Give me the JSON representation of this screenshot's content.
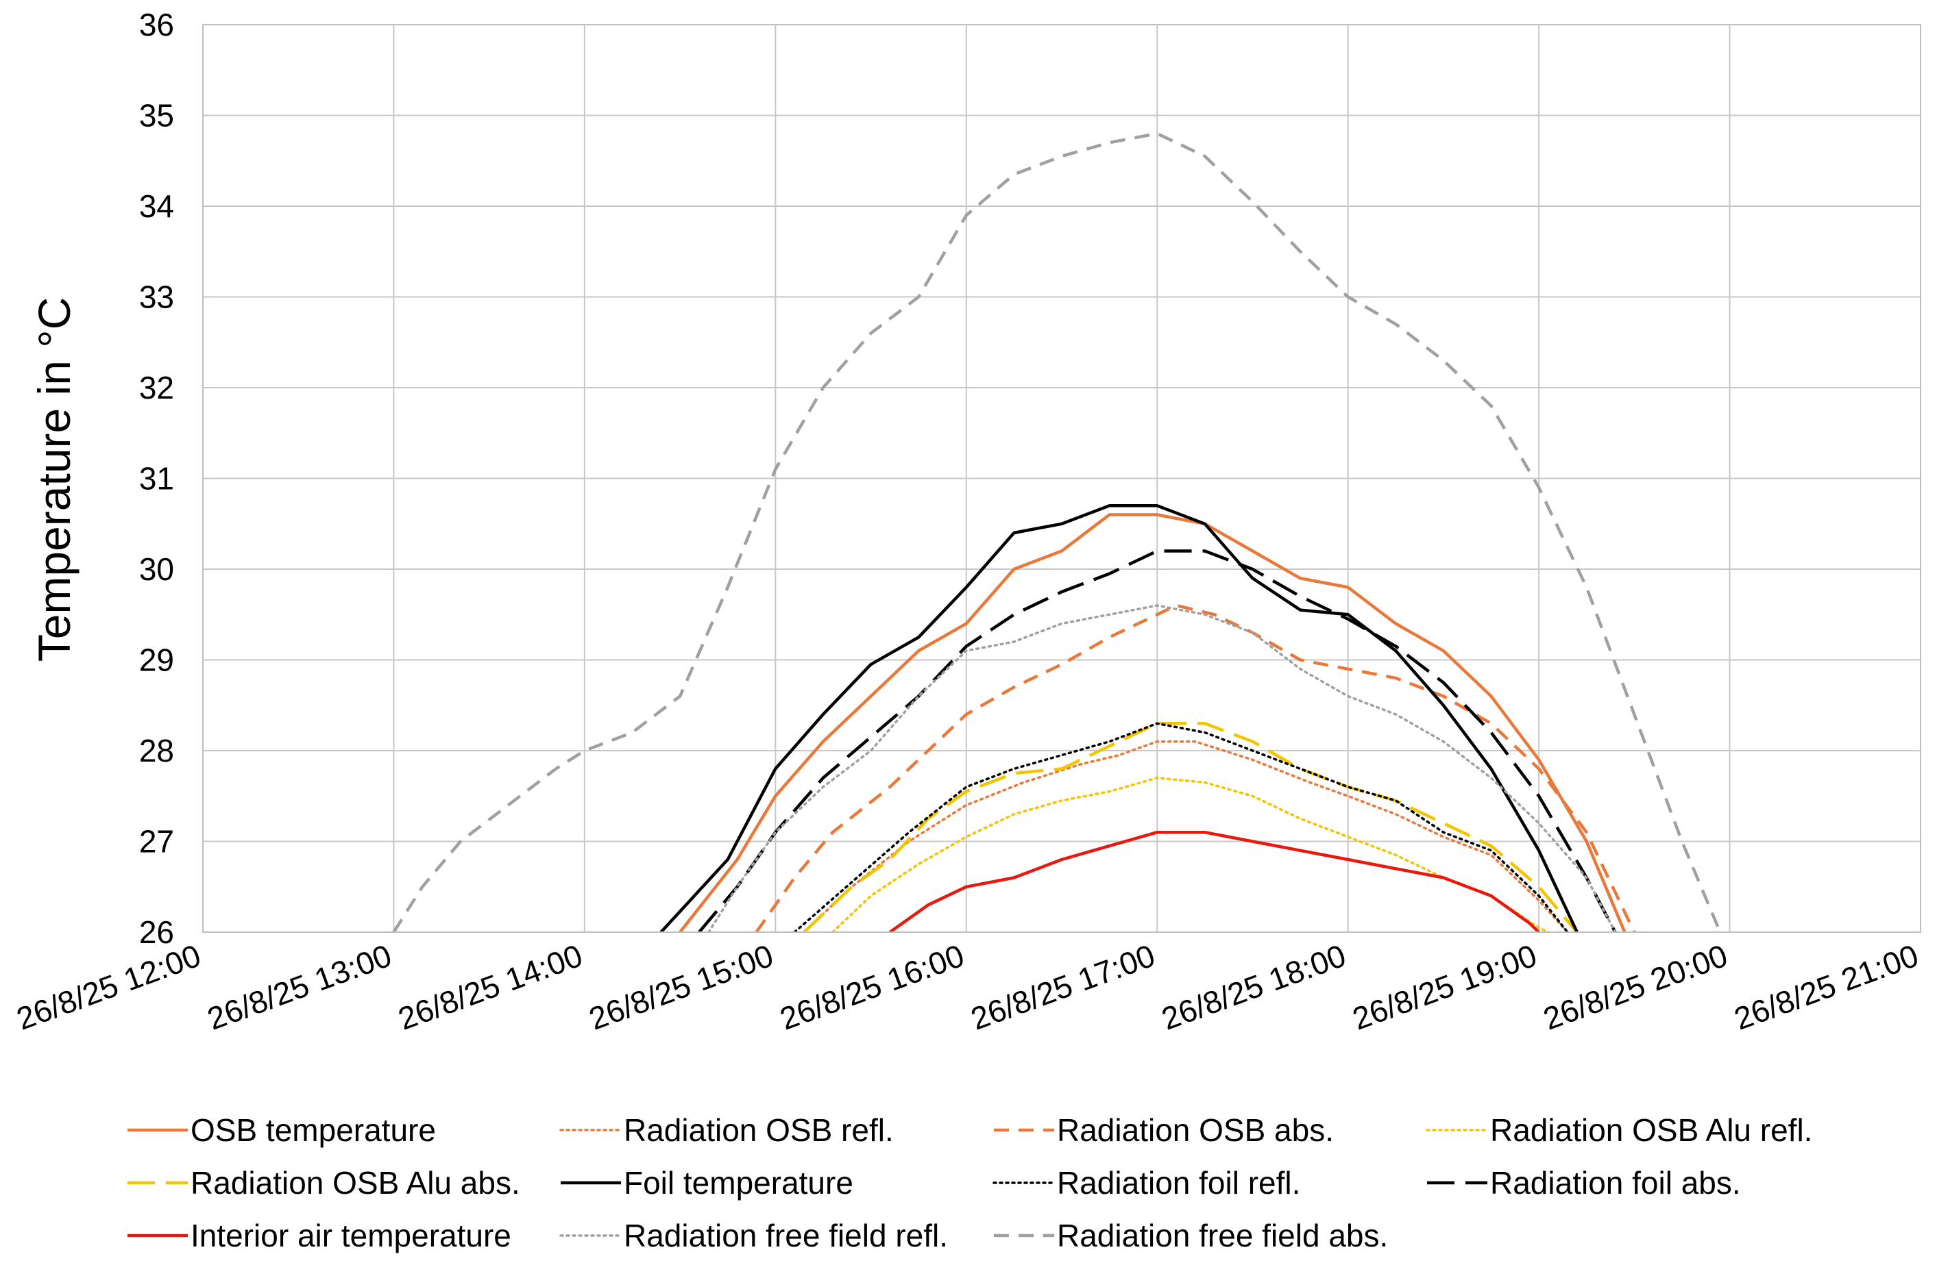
{
  "chart_data": {
    "type": "line",
    "title": "",
    "xlabel": "",
    "ylabel": "Temperature in °C",
    "ylim": [
      26,
      36
    ],
    "xlim_hours": [
      12,
      21
    ],
    "yticks": [
      "26",
      "27",
      "28",
      "29",
      "30",
      "31",
      "32",
      "33",
      "34",
      "35",
      "36"
    ],
    "xticks": [
      "26/8/25 12:00",
      "26/8/25 13:00",
      "26/8/25 14:00",
      "26/8/25 15:00",
      "26/8/25 16:00",
      "26/8/25 17:00",
      "26/8/25 18:00",
      "26/8/25 19:00",
      "26/8/25 20:00",
      "26/8/25 21:00"
    ],
    "grid": true,
    "legend_position": "bottom",
    "series": [
      {
        "name": "OSB temperature",
        "color": "#E8793A",
        "dash": "solid",
        "points": [
          [
            14.5,
            26.0
          ],
          [
            14.8,
            26.8
          ],
          [
            15.0,
            27.5
          ],
          [
            15.25,
            28.1
          ],
          [
            15.5,
            28.6
          ],
          [
            15.75,
            29.1
          ],
          [
            16.0,
            29.4
          ],
          [
            16.25,
            30.0
          ],
          [
            16.5,
            30.2
          ],
          [
            16.75,
            30.6
          ],
          [
            17.0,
            30.6
          ],
          [
            17.25,
            30.5
          ],
          [
            17.5,
            30.2
          ],
          [
            17.75,
            29.9
          ],
          [
            18.0,
            29.8
          ],
          [
            18.25,
            29.4
          ],
          [
            18.5,
            29.1
          ],
          [
            18.75,
            28.6
          ],
          [
            19.0,
            27.9
          ],
          [
            19.25,
            27.0
          ],
          [
            19.45,
            26.0
          ]
        ]
      },
      {
        "name": "Radiation OSB refl.",
        "color": "#E8793A",
        "dash": "dot",
        "points": [
          [
            15.15,
            26.0
          ],
          [
            15.4,
            26.5
          ],
          [
            15.7,
            27.0
          ],
          [
            16.0,
            27.4
          ],
          [
            16.3,
            27.65
          ],
          [
            16.6,
            27.85
          ],
          [
            16.8,
            27.95
          ],
          [
            17.0,
            28.1
          ],
          [
            17.2,
            28.1
          ],
          [
            17.5,
            27.9
          ],
          [
            17.8,
            27.65
          ],
          [
            18.0,
            27.5
          ],
          [
            18.25,
            27.3
          ],
          [
            18.5,
            27.05
          ],
          [
            18.75,
            26.85
          ],
          [
            19.0,
            26.35
          ],
          [
            19.15,
            26.0
          ]
        ]
      },
      {
        "name": "Radiation OSB abs.",
        "color": "#E8793A",
        "dash": "dash",
        "points": [
          [
            14.9,
            26.0
          ],
          [
            15.1,
            26.6
          ],
          [
            15.3,
            27.1
          ],
          [
            15.6,
            27.6
          ],
          [
            15.8,
            28.0
          ],
          [
            16.0,
            28.4
          ],
          [
            16.25,
            28.7
          ],
          [
            16.5,
            28.95
          ],
          [
            16.75,
            29.25
          ],
          [
            17.0,
            29.5
          ],
          [
            17.1,
            29.6
          ],
          [
            17.3,
            29.5
          ],
          [
            17.5,
            29.3
          ],
          [
            17.75,
            29.0
          ],
          [
            18.0,
            28.9
          ],
          [
            18.25,
            28.8
          ],
          [
            18.5,
            28.6
          ],
          [
            18.75,
            28.3
          ],
          [
            19.0,
            27.8
          ],
          [
            19.25,
            27.1
          ],
          [
            19.5,
            26.0
          ]
        ]
      },
      {
        "name": "Radiation OSB Alu refl.",
        "color": "#F3C400",
        "dash": "dot",
        "points": [
          [
            15.3,
            26.0
          ],
          [
            15.5,
            26.4
          ],
          [
            15.75,
            26.75
          ],
          [
            16.0,
            27.05
          ],
          [
            16.25,
            27.3
          ],
          [
            16.5,
            27.45
          ],
          [
            16.75,
            27.55
          ],
          [
            17.0,
            27.7
          ],
          [
            17.25,
            27.65
          ],
          [
            17.5,
            27.5
          ],
          [
            17.75,
            27.25
          ],
          [
            18.0,
            27.05
          ],
          [
            18.25,
            26.85
          ],
          [
            18.5,
            26.6
          ],
          [
            18.75,
            26.4
          ],
          [
            19.0,
            26.05
          ],
          [
            19.05,
            26.0
          ]
        ]
      },
      {
        "name": "Radiation OSB Alu abs.",
        "color": "#F3C400",
        "dash": "longdash",
        "points": [
          [
            15.15,
            26.0
          ],
          [
            15.4,
            26.5
          ],
          [
            15.6,
            26.8
          ],
          [
            15.8,
            27.25
          ],
          [
            16.0,
            27.55
          ],
          [
            16.25,
            27.75
          ],
          [
            16.5,
            27.8
          ],
          [
            16.75,
            28.05
          ],
          [
            17.0,
            28.3
          ],
          [
            17.25,
            28.3
          ],
          [
            17.5,
            28.1
          ],
          [
            17.75,
            27.8
          ],
          [
            18.0,
            27.6
          ],
          [
            18.25,
            27.45
          ],
          [
            18.5,
            27.2
          ],
          [
            18.75,
            26.95
          ],
          [
            19.0,
            26.5
          ],
          [
            19.2,
            26.0
          ]
        ]
      },
      {
        "name": "Foil temperature",
        "color": "#000000",
        "dash": "solid",
        "points": [
          [
            14.4,
            26.0
          ],
          [
            14.75,
            26.8
          ],
          [
            15.0,
            27.8
          ],
          [
            15.25,
            28.4
          ],
          [
            15.5,
            28.95
          ],
          [
            15.75,
            29.25
          ],
          [
            16.0,
            29.8
          ],
          [
            16.25,
            30.4
          ],
          [
            16.5,
            30.5
          ],
          [
            16.75,
            30.7
          ],
          [
            17.0,
            30.7
          ],
          [
            17.25,
            30.5
          ],
          [
            17.5,
            29.9
          ],
          [
            17.75,
            29.55
          ],
          [
            18.0,
            29.5
          ],
          [
            18.25,
            29.1
          ],
          [
            18.5,
            28.5
          ],
          [
            18.75,
            27.8
          ],
          [
            19.0,
            26.9
          ],
          [
            19.2,
            26.0
          ]
        ]
      },
      {
        "name": "Radiation foil refl.",
        "color": "#000000",
        "dash": "dot",
        "points": [
          [
            15.1,
            26.0
          ],
          [
            15.4,
            26.55
          ],
          [
            15.7,
            27.1
          ],
          [
            16.0,
            27.6
          ],
          [
            16.25,
            27.8
          ],
          [
            16.5,
            27.95
          ],
          [
            16.75,
            28.1
          ],
          [
            17.0,
            28.3
          ],
          [
            17.25,
            28.2
          ],
          [
            17.5,
            28.0
          ],
          [
            17.75,
            27.8
          ],
          [
            18.0,
            27.6
          ],
          [
            18.25,
            27.45
          ],
          [
            18.5,
            27.1
          ],
          [
            18.75,
            26.9
          ],
          [
            19.0,
            26.4
          ],
          [
            19.15,
            26.0
          ]
        ]
      },
      {
        "name": "Radiation foil abs.",
        "color": "#000000",
        "dash": "longdash",
        "points": [
          [
            14.6,
            26.0
          ],
          [
            14.8,
            26.5
          ],
          [
            15.0,
            27.1
          ],
          [
            15.25,
            27.7
          ],
          [
            15.5,
            28.15
          ],
          [
            15.75,
            28.6
          ],
          [
            16.0,
            29.15
          ],
          [
            16.25,
            29.5
          ],
          [
            16.5,
            29.75
          ],
          [
            16.75,
            29.95
          ],
          [
            17.0,
            30.2
          ],
          [
            17.25,
            30.2
          ],
          [
            17.5,
            30.0
          ],
          [
            17.75,
            29.7
          ],
          [
            18.0,
            29.45
          ],
          [
            18.25,
            29.15
          ],
          [
            18.5,
            28.75
          ],
          [
            18.75,
            28.2
          ],
          [
            19.0,
            27.5
          ],
          [
            19.25,
            26.6
          ],
          [
            19.4,
            26.0
          ]
        ]
      },
      {
        "name": "Interior air temperature",
        "color": "#E8190E",
        "dash": "solid",
        "points": [
          [
            15.6,
            26.0
          ],
          [
            15.8,
            26.3
          ],
          [
            16.0,
            26.5
          ],
          [
            16.25,
            26.6
          ],
          [
            16.5,
            26.8
          ],
          [
            16.75,
            26.95
          ],
          [
            17.0,
            27.1
          ],
          [
            17.25,
            27.1
          ],
          [
            17.5,
            27.0
          ],
          [
            17.75,
            26.9
          ],
          [
            18.0,
            26.8
          ],
          [
            18.25,
            26.7
          ],
          [
            18.5,
            26.6
          ],
          [
            18.75,
            26.4
          ],
          [
            18.95,
            26.1
          ],
          [
            19.0,
            26.0
          ]
        ]
      },
      {
        "name": "Radiation free field refl.",
        "color": "#A0A0A0",
        "dash": "dot",
        "points": [
          [
            14.65,
            26.0
          ],
          [
            14.8,
            26.5
          ],
          [
            15.0,
            27.1
          ],
          [
            15.25,
            27.6
          ],
          [
            15.5,
            28.0
          ],
          [
            15.75,
            28.6
          ],
          [
            16.0,
            29.1
          ],
          [
            16.25,
            29.2
          ],
          [
            16.5,
            29.4
          ],
          [
            16.75,
            29.5
          ],
          [
            17.0,
            29.6
          ],
          [
            17.25,
            29.5
          ],
          [
            17.5,
            29.3
          ],
          [
            17.75,
            28.9
          ],
          [
            18.0,
            28.6
          ],
          [
            18.25,
            28.4
          ],
          [
            18.5,
            28.1
          ],
          [
            18.75,
            27.7
          ],
          [
            19.0,
            27.2
          ],
          [
            19.25,
            26.6
          ],
          [
            19.4,
            26.0
          ]
        ]
      },
      {
        "name": "Radiation free field abs.",
        "color": "#A0A0A0",
        "dash": "dash",
        "points": [
          [
            13.0,
            26.0
          ],
          [
            13.15,
            26.5
          ],
          [
            13.35,
            27.0
          ],
          [
            13.6,
            27.4
          ],
          [
            13.85,
            27.8
          ],
          [
            14.0,
            28.0
          ],
          [
            14.25,
            28.2
          ],
          [
            14.5,
            28.6
          ],
          [
            14.75,
            29.8
          ],
          [
            15.0,
            31.1
          ],
          [
            15.25,
            32.0
          ],
          [
            15.5,
            32.6
          ],
          [
            15.75,
            33.0
          ],
          [
            16.0,
            33.9
          ],
          [
            16.25,
            34.35
          ],
          [
            16.5,
            34.55
          ],
          [
            16.75,
            34.7
          ],
          [
            17.0,
            34.8
          ],
          [
            17.25,
            34.55
          ],
          [
            17.5,
            34.05
          ],
          [
            17.75,
            33.5
          ],
          [
            18.0,
            33.0
          ],
          [
            18.25,
            32.7
          ],
          [
            18.5,
            32.3
          ],
          [
            18.75,
            31.8
          ],
          [
            19.0,
            30.9
          ],
          [
            19.25,
            29.8
          ],
          [
            19.5,
            28.4
          ],
          [
            19.75,
            27.0
          ],
          [
            19.95,
            26.0
          ]
        ]
      }
    ]
  }
}
